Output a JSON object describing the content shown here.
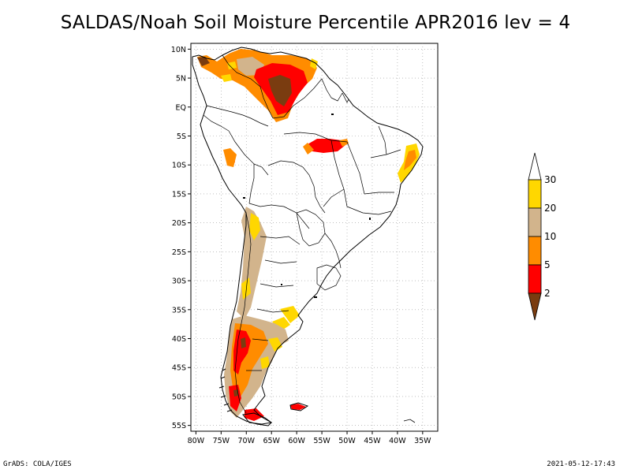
{
  "title": "SALDAS/Noah Soil Moisture Percentile APR2016 lev = 4",
  "footer_left": "GrADS: COLA/IGES",
  "footer_right": "2021-05-12-17:43",
  "map": {
    "lon_range": [
      -81,
      -32
    ],
    "lat_range": [
      -56,
      11
    ],
    "lon_ticks": [
      {
        "value": -80,
        "label": "80W"
      },
      {
        "value": -75,
        "label": "75W"
      },
      {
        "value": -70,
        "label": "70W"
      },
      {
        "value": -65,
        "label": "65W"
      },
      {
        "value": -60,
        "label": "60W"
      },
      {
        "value": -55,
        "label": "55W"
      },
      {
        "value": -50,
        "label": "50W"
      },
      {
        "value": -45,
        "label": "45W"
      },
      {
        "value": -40,
        "label": "40W"
      },
      {
        "value": -35,
        "label": "35W"
      }
    ],
    "lat_ticks": [
      {
        "value": 10,
        "label": "10N"
      },
      {
        "value": 5,
        "label": "5N"
      },
      {
        "value": 0,
        "label": "EQ"
      },
      {
        "value": -5,
        "label": "5S"
      },
      {
        "value": -10,
        "label": "10S"
      },
      {
        "value": -15,
        "label": "15S"
      },
      {
        "value": -20,
        "label": "20S"
      },
      {
        "value": -25,
        "label": "25S"
      },
      {
        "value": -30,
        "label": "30S"
      },
      {
        "value": -35,
        "label": "35S"
      },
      {
        "value": -40,
        "label": "40S"
      },
      {
        "value": -45,
        "label": "45S"
      },
      {
        "value": -50,
        "label": "50S"
      },
      {
        "value": -55,
        "label": "55S"
      }
    ],
    "grid": true
  },
  "colorbar": {
    "labels": [
      "2",
      "5",
      "10",
      "20",
      "30"
    ],
    "colors": [
      "#7a3c10",
      "#ff0000",
      "#ff8c00",
      "#d2b48c",
      "#ffd700",
      "#ffffff"
    ]
  }
}
